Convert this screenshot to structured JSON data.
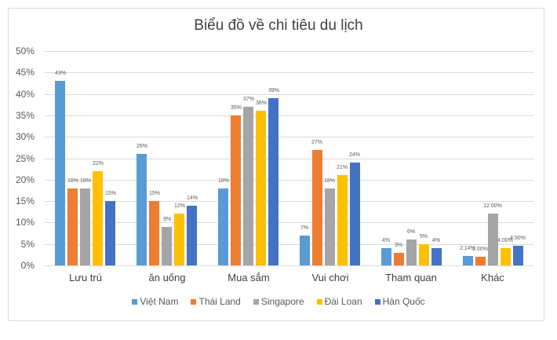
{
  "chart_data": {
    "type": "bar",
    "title": "Biểu đồ về chi tiêu du lịch",
    "xlabel": "",
    "ylabel": "",
    "ylim": [
      0,
      50
    ],
    "yticks": [
      "0%",
      "5%",
      "10%",
      "15%",
      "20%",
      "25%",
      "30%",
      "35%",
      "40%",
      "45%",
      "50%"
    ],
    "grid": true,
    "legend_position": "bottom",
    "categories": [
      "Lưu trú",
      "ăn uống",
      "Mua sắm",
      "Vui chơi",
      "Tham quan",
      "Khác"
    ],
    "series": [
      {
        "name": "Việt Nam",
        "color": "#5b9bd5",
        "values": [
          43,
          26,
          18,
          7,
          4,
          2.14
        ],
        "labels": [
          "43%",
          "26%",
          "18%",
          "7%",
          "4%",
          "2.14%"
        ]
      },
      {
        "name": "Thái Land",
        "color": "#ed7d31",
        "values": [
          18,
          15,
          35,
          27,
          3,
          2.0
        ],
        "labels": [
          "18%",
          "15%",
          "35%",
          "27%",
          "3%",
          "2.00%"
        ]
      },
      {
        "name": "Singapore",
        "color": "#a5a5a5",
        "values": [
          18,
          9,
          37,
          18,
          6,
          12.0
        ],
        "labels": [
          "18%",
          "9%",
          "37%",
          "18%",
          "6%",
          "12.00%"
        ]
      },
      {
        "name": "Đài Loan",
        "color": "#ffc000",
        "values": [
          22,
          12,
          36,
          21,
          5,
          4.0
        ],
        "labels": [
          "22%",
          "12%",
          "36%",
          "21%",
          "5%",
          "4.00%"
        ]
      },
      {
        "name": "Hàn Quốc",
        "color": "#4472c4",
        "values": [
          15,
          14,
          39,
          24,
          4,
          4.5
        ],
        "labels": [
          "15%",
          "14%",
          "39%",
          "24%",
          "4%",
          "4.50%"
        ]
      }
    ]
  }
}
